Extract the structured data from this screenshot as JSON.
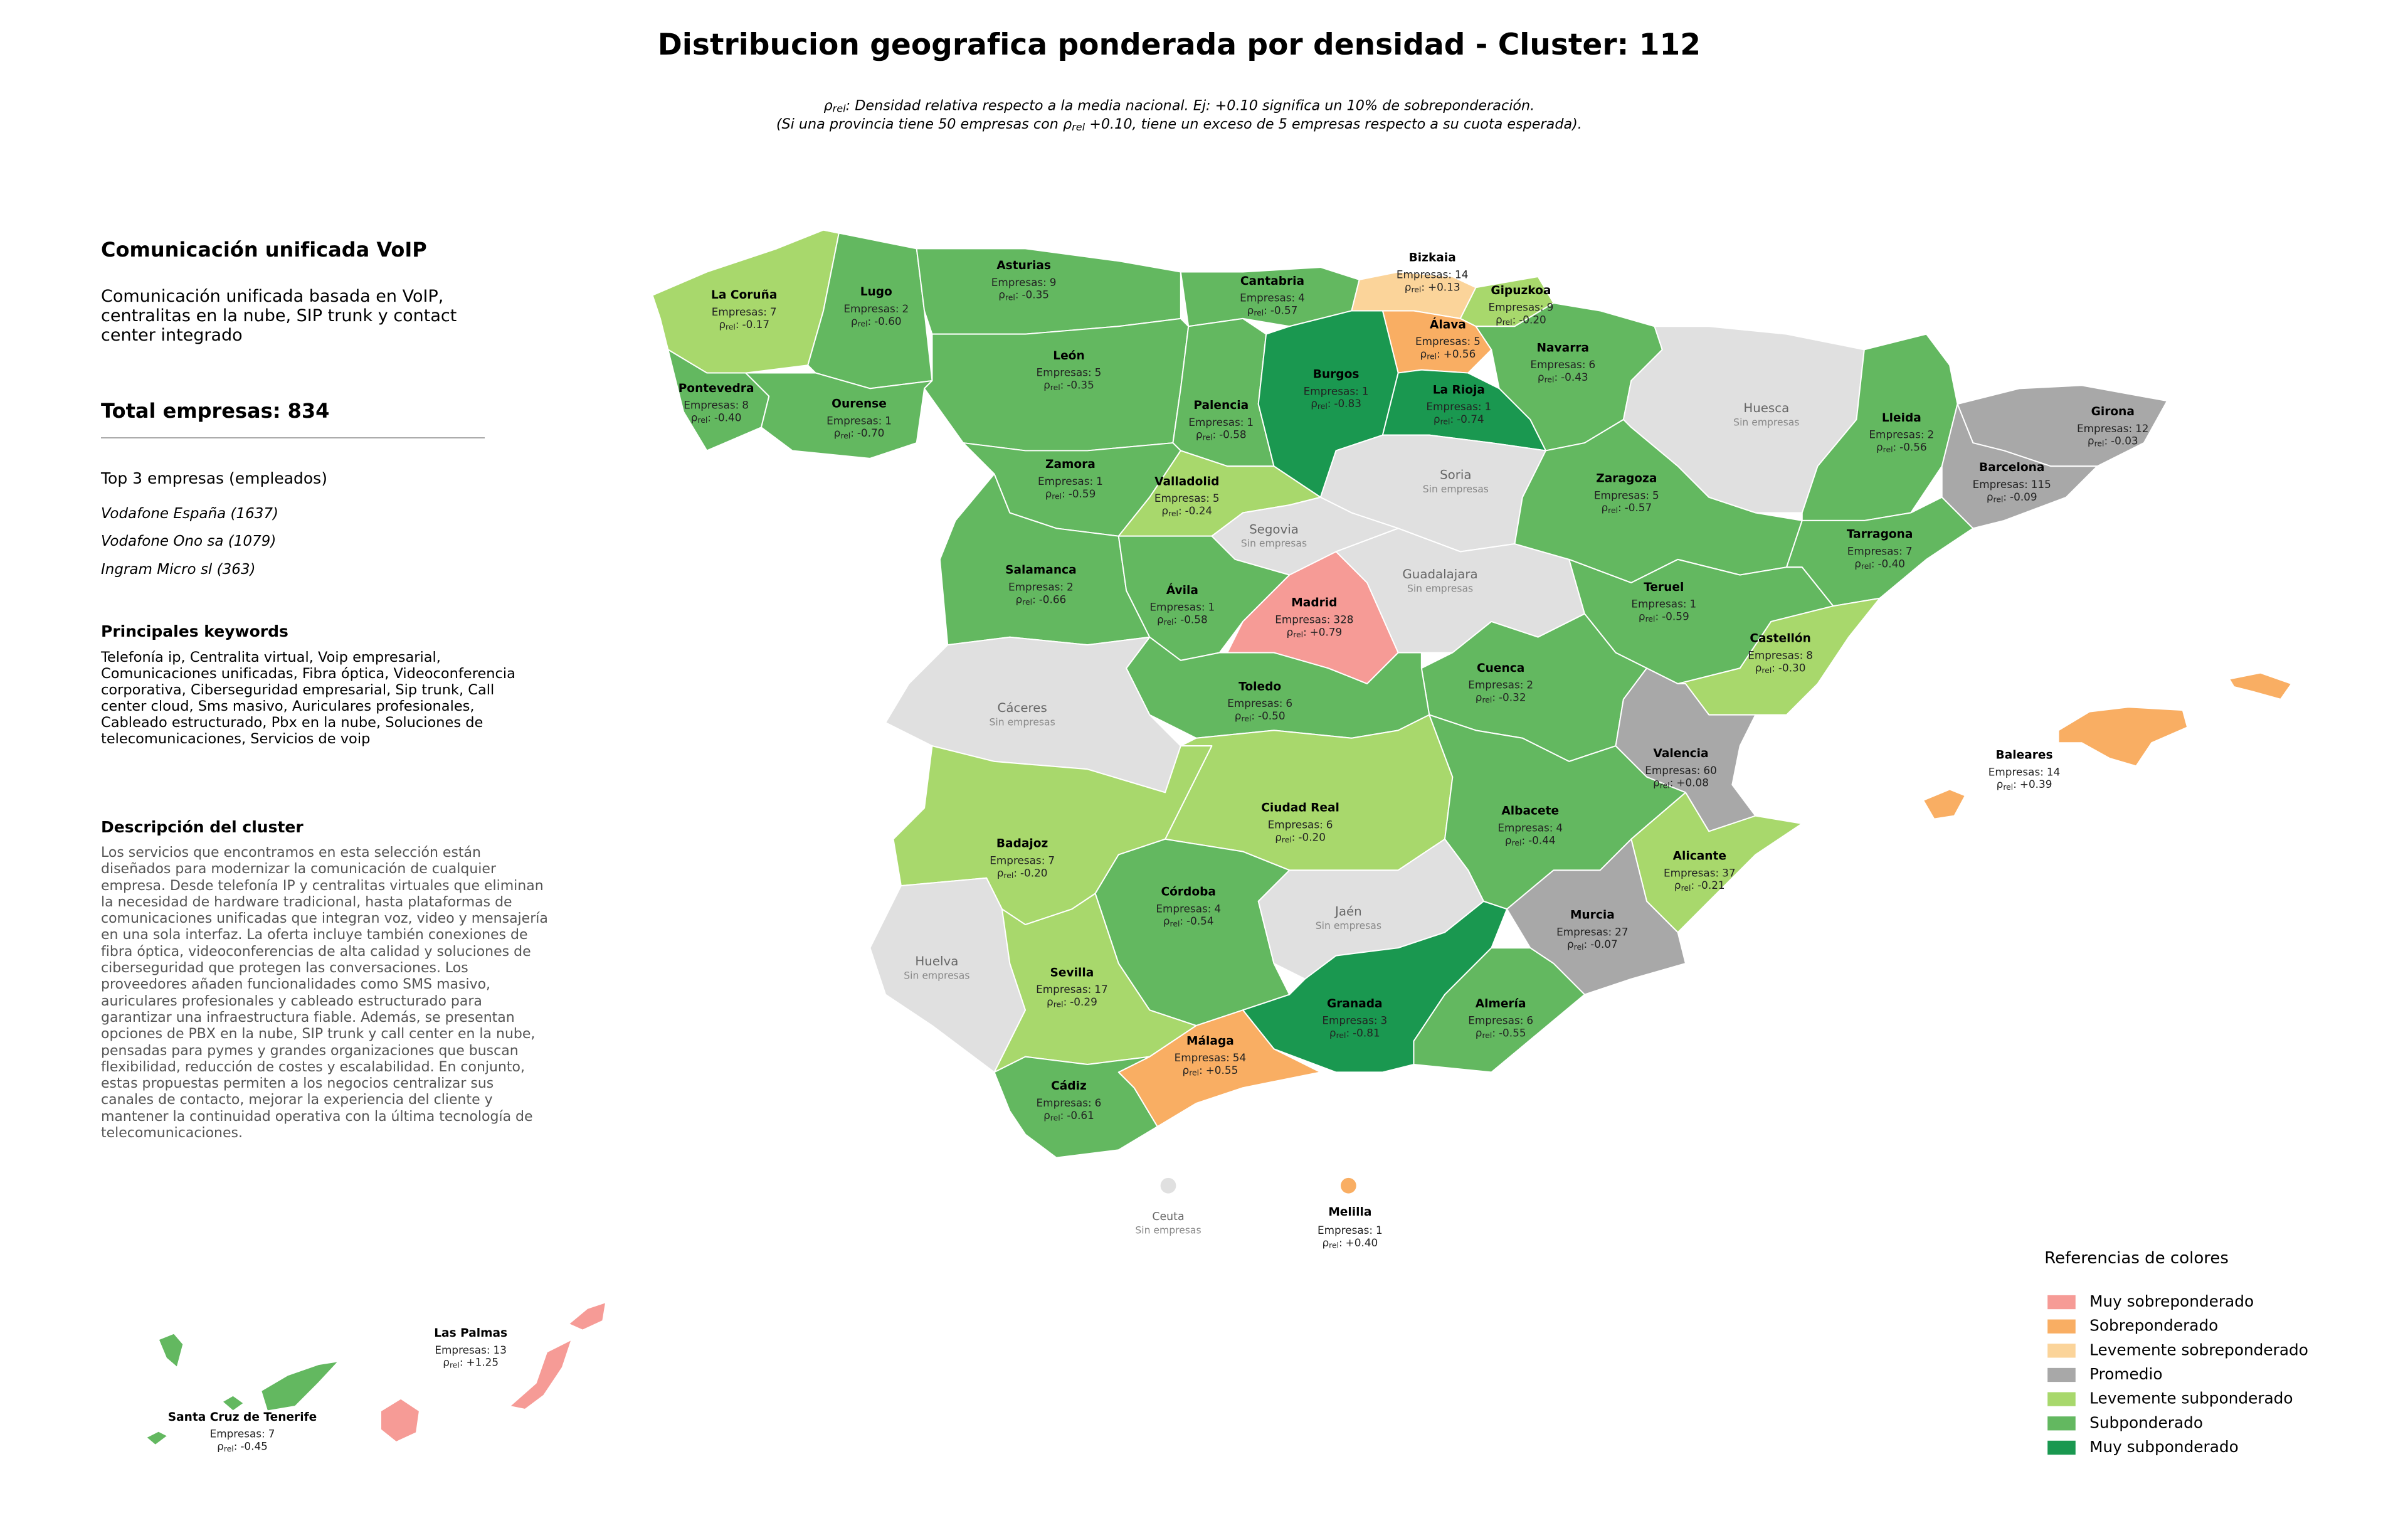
{
  "title": "Distribucion geografica ponderada por densidad - Cluster: 112",
  "subtitle": {
    "line1": [
      "ρ",
      "rel",
      ": Densidad relativa respecto a la media nacional. Ej: +0.10 significa un 10% de sobreponderación."
    ],
    "line2": [
      "(Si una provincia tiene 50 empresas con ",
      "ρ",
      "rel",
      " +0.10, tiene un exceso de 5 empresas respecto a su cuota esperada)."
    ]
  },
  "sidebar": {
    "heading": "Comunicación unificada VoIP",
    "description": "Comunicación unificada basada en VoIP, centralitas en la nube, SIP trunk y contact center integrado",
    "total_label": "Total empresas:",
    "total": 834,
    "top3_heading": "Top 3 empresas (empleados)",
    "top3": [
      "Vodafone España (1637)",
      "Vodafone Ono sa (1079)",
      "Ingram Micro sl (363)"
    ],
    "keywords_heading": "Principales keywords",
    "keywords": "Telefonía ip, Centralita virtual, Voip empresarial, Comunicaciones unificadas, Fibra óptica, Videoconferencia corporativa, Ciberseguridad empresarial, Sip trunk, Call center cloud, Sms masivo, Auriculares profesionales, Cableado estructurado, Pbx en la nube, Soluciones de telecomunicaciones, Servicios de voip",
    "cluster_heading": "Descripción del cluster",
    "cluster_text": "Los servicios que encontramos en esta selección están diseñados para modernizar la comunicación de cualquier empresa. Desde telefonía IP y centralitas virtuales que eliminan la necesidad de hardware tradicional, hasta plataformas de comunicaciones unificadas que integran voz, video y mensajería en una sola interfaz. La oferta incluye también conexiones de fibra óptica, videoconferencias de alta calidad y soluciones de ciberseguridad que protegen las conversaciones. Los proveedores añaden funcionalidades como SMS masivo, auriculares profesionales y cableado estructurado para garantizar una infraestructura fiable. Además, se presentan opciones de PBX en la nube, SIP trunk y call center en la nube, pensadas para pymes y grandes organizaciones que buscan flexibilidad, reducción de costes y escalabilidad. En conjunto, estas propuestas permiten a los negocios centralizar sus canales de contacto, mejorar la experiencia del cliente y mantener la continuidad operativa con la última tecnología de telecomunicaciones."
  },
  "labels": {
    "empresas": "Empresas:",
    "rho": "ρ",
    "rel": "rel",
    "sep": ":",
    "no_data": "Sin empresas"
  },
  "no_data_color": "#e0e0e0",
  "legend": {
    "title": "Referencias de colores",
    "items": [
      {
        "name": "Muy sobreponderado",
        "color": "#f69b96"
      },
      {
        "name": "Sobreponderado",
        "color": "#f9ae63"
      },
      {
        "name": "Levemente sobreponderado",
        "color": "#fbd49a"
      },
      {
        "name": "Promedio",
        "color": "#a8a8a8"
      },
      {
        "name": "Levemente subponderado",
        "color": "#a8d86c"
      },
      {
        "name": "Subponderado",
        "color": "#63b860"
      },
      {
        "name": "Muy subponderado",
        "color": "#1a9850"
      }
    ]
  },
  "provinces": [
    {
      "name": "La Coruña",
      "empresas": 7,
      "rho": "-0.17",
      "color": "#a8d86c"
    },
    {
      "name": "Lugo",
      "empresas": 2,
      "rho": "-0.60",
      "color": "#63b860"
    },
    {
      "name": "Pontevedra",
      "empresas": 8,
      "rho": "-0.40",
      "color": "#63b860"
    },
    {
      "name": "Ourense",
      "empresas": 1,
      "rho": "-0.70",
      "color": "#63b860"
    },
    {
      "name": "Asturias",
      "empresas": 9,
      "rho": "-0.35",
      "color": "#63b860"
    },
    {
      "name": "Cantabria",
      "empresas": 4,
      "rho": "-0.57",
      "color": "#63b860"
    },
    {
      "name": "Bizkaia",
      "empresas": 14,
      "rho": "+0.13",
      "color": "#fbd49a"
    },
    {
      "name": "Gipuzkoa",
      "empresas": 9,
      "rho": "-0.20",
      "color": "#a8d86c"
    },
    {
      "name": "Álava",
      "empresas": 5,
      "rho": "+0.56",
      "color": "#f9ae63"
    },
    {
      "name": "Navarra",
      "empresas": 6,
      "rho": "-0.43",
      "color": "#63b860"
    },
    {
      "name": "León",
      "empresas": 5,
      "rho": "-0.35",
      "color": "#63b860"
    },
    {
      "name": "Palencia",
      "empresas": 1,
      "rho": "-0.58",
      "color": "#63b860"
    },
    {
      "name": "Burgos",
      "empresas": 1,
      "rho": "-0.83",
      "color": "#1a9850"
    },
    {
      "name": "La Rioja",
      "empresas": 1,
      "rho": "-0.74",
      "color": "#1a9850"
    },
    {
      "name": "Soria",
      "empresas": null,
      "rho": null,
      "color": null
    },
    {
      "name": "Zamora",
      "empresas": 1,
      "rho": "-0.59",
      "color": "#63b860"
    },
    {
      "name": "Valladolid",
      "empresas": 5,
      "rho": "-0.24",
      "color": "#a8d86c"
    },
    {
      "name": "Segovia",
      "empresas": null,
      "rho": null,
      "color": null
    },
    {
      "name": "Salamanca",
      "empresas": 2,
      "rho": "-0.66",
      "color": "#63b860"
    },
    {
      "name": "Ávila",
      "empresas": 1,
      "rho": "-0.58",
      "color": "#63b860"
    },
    {
      "name": "Madrid",
      "empresas": 328,
      "rho": "+0.79",
      "color": "#f69b96"
    },
    {
      "name": "Guadalajara",
      "empresas": null,
      "rho": null,
      "color": null
    },
    {
      "name": "Huesca",
      "empresas": null,
      "rho": null,
      "color": null
    },
    {
      "name": "Lleida",
      "empresas": 2,
      "rho": "-0.56",
      "color": "#63b860"
    },
    {
      "name": "Girona",
      "empresas": 12,
      "rho": "-0.03",
      "color": "#a8a8a8"
    },
    {
      "name": "Barcelona",
      "empresas": 115,
      "rho": "-0.09",
      "color": "#a8a8a8"
    },
    {
      "name": "Zaragoza",
      "empresas": 5,
      "rho": "-0.57",
      "color": "#63b860"
    },
    {
      "name": "Tarragona",
      "empresas": 7,
      "rho": "-0.40",
      "color": "#63b860"
    },
    {
      "name": "Teruel",
      "empresas": 1,
      "rho": "-0.59",
      "color": "#63b860"
    },
    {
      "name": "Castellón",
      "empresas": 8,
      "rho": "-0.30",
      "color": "#a8d86c"
    },
    {
      "name": "Cuenca",
      "empresas": 2,
      "rho": "-0.32",
      "color": "#63b860"
    },
    {
      "name": "Toledo",
      "empresas": 6,
      "rho": "-0.50",
      "color": "#63b860"
    },
    {
      "name": "Cáceres",
      "empresas": null,
      "rho": null,
      "color": null
    },
    {
      "name": "Valencia",
      "empresas": 60,
      "rho": "+0.08",
      "color": "#a8a8a8"
    },
    {
      "name": "Ciudad Real",
      "empresas": 6,
      "rho": "-0.20",
      "color": "#a8d86c"
    },
    {
      "name": "Albacete",
      "empresas": 4,
      "rho": "-0.44",
      "color": "#63b860"
    },
    {
      "name": "Badajoz",
      "empresas": 7,
      "rho": "-0.20",
      "color": "#a8d86c"
    },
    {
      "name": "Alicante",
      "empresas": 37,
      "rho": "-0.21",
      "color": "#a8d86c"
    },
    {
      "name": "Córdoba",
      "empresas": 4,
      "rho": "-0.54",
      "color": "#63b860"
    },
    {
      "name": "Jaén",
      "empresas": null,
      "rho": null,
      "color": null
    },
    {
      "name": "Huelva",
      "empresas": null,
      "rho": null,
      "color": null
    },
    {
      "name": "Murcia",
      "empresas": 27,
      "rho": "-0.07",
      "color": "#a8a8a8"
    },
    {
      "name": "Sevilla",
      "empresas": 17,
      "rho": "-0.29",
      "color": "#a8d86c"
    },
    {
      "name": "Granada",
      "empresas": 3,
      "rho": "-0.81",
      "color": "#1a9850"
    },
    {
      "name": "Almería",
      "empresas": 6,
      "rho": "-0.55",
      "color": "#63b860"
    },
    {
      "name": "Málaga",
      "empresas": 54,
      "rho": "+0.55",
      "color": "#f9ae63"
    },
    {
      "name": "Cádiz",
      "empresas": 6,
      "rho": "-0.61",
      "color": "#63b860"
    },
    {
      "name": "Baleares",
      "empresas": 14,
      "rho": "+0.39",
      "color": "#f9ae63"
    },
    {
      "name": "Las Palmas",
      "empresas": 13,
      "rho": "+1.25",
      "color": "#f69b96"
    },
    {
      "name": "Santa Cruz de Tenerife",
      "empresas": 7,
      "rho": "-0.45",
      "color": "#63b860"
    },
    {
      "name": "Ceuta",
      "empresas": null,
      "rho": null,
      "color": null
    },
    {
      "name": "Melilla",
      "empresas": 1,
      "rho": "+0.40",
      "color": "#f9ae63"
    }
  ]
}
